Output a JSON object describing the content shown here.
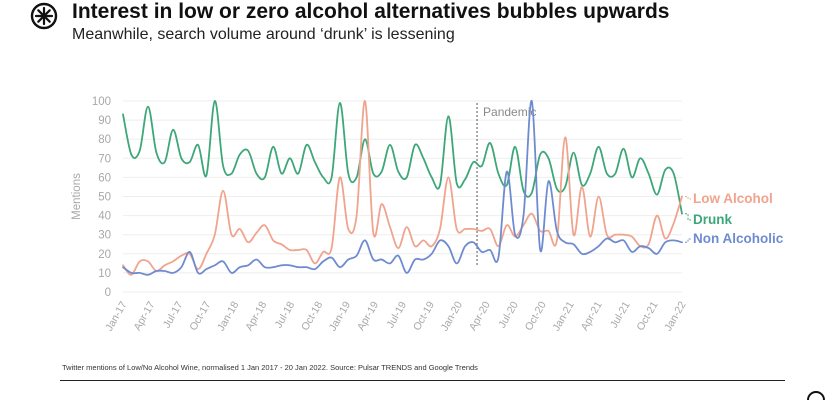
{
  "header": {
    "title": "Interest in low or zero alcohol alternatives bubbles upwards",
    "subtitle": "Meanwhile, search volume around ‘drunk’ is lessening"
  },
  "footnote": "Twitter mentions of Low/No Alcohol Wine, normalised 1 Jan 2017 - 20 Jan 2022. Source: Pulsar TRENDS and Google Trends",
  "colors": {
    "drunk": "#3ea779",
    "low_alcohol": "#f0a48d",
    "non_alcoholic": "#6f8bd0",
    "axis_text": "#a8a8a8",
    "grid": "#eeeeee"
  },
  "chart_data": {
    "type": "line",
    "title": "Interest in low or zero alcohol alternatives bubbles upwards",
    "xlabel": "",
    "ylabel": "Mentions",
    "ylim": [
      0,
      100
    ],
    "yticks": [
      "0",
      "10",
      "20",
      "30",
      "40",
      "50",
      "60",
      "70",
      "80",
      "90",
      "100"
    ],
    "x_start": "Jan 2017",
    "x_end": "Jan 2022",
    "xticks": [
      "Jan-17",
      "Apr-17",
      "Jul-17",
      "Oct-17",
      "Jan-18",
      "Apr-18",
      "Jul-18",
      "Oct-18",
      "Jan-19",
      "Apr-19",
      "Jul-19",
      "Oct-19",
      "Jan-20",
      "Apr-20",
      "Jul-20",
      "Oct-20",
      "Jan-21",
      "Apr-21",
      "Jul-21",
      "Oct-21",
      "Jan-22"
    ],
    "annotation": {
      "label": "Pandemic",
      "x": "Mar 2020"
    },
    "series": [
      {
        "name": "Drunk",
        "color": "#3ea779",
        "values": [
          93,
          72,
          74,
          97,
          73,
          68,
          85,
          70,
          68,
          77,
          61,
          100,
          66,
          62,
          72,
          74,
          62,
          60,
          76,
          62,
          70,
          62,
          77,
          68,
          60,
          60,
          99,
          62,
          60,
          80,
          62,
          63,
          77,
          63,
          60,
          77,
          70,
          60,
          56,
          92,
          57,
          59,
          68,
          66,
          78,
          62,
          56,
          76,
          53,
          52,
          72,
          70,
          54,
          55,
          73,
          56,
          62,
          76,
          62,
          62,
          75,
          60,
          70,
          62,
          51,
          64,
          62,
          41
        ]
      },
      {
        "name": "Low Alcohol",
        "color": "#f0a48d",
        "values": [
          14,
          9,
          16,
          16,
          11,
          14,
          16,
          19,
          20,
          12,
          20,
          30,
          53,
          30,
          33,
          26,
          31,
          35,
          27,
          25,
          22,
          22,
          22,
          15,
          21,
          23,
          60,
          33,
          40,
          100,
          31,
          46,
          34,
          23,
          34,
          24,
          27,
          24,
          33,
          60,
          33,
          33,
          33,
          32,
          33,
          24,
          35,
          29,
          35,
          41,
          32,
          32,
          27,
          81,
          30,
          55,
          29,
          50,
          30,
          30,
          30,
          29,
          24,
          25,
          40,
          28,
          36,
          50
        ]
      },
      {
        "name": "Non Alcoholic",
        "color": "#6f8bd0",
        "values": [
          13,
          10,
          10,
          9,
          11,
          11,
          10,
          13,
          21,
          10,
          12,
          14,
          16,
          10,
          13,
          14,
          17,
          13,
          13,
          14,
          14,
          13,
          13,
          12,
          16,
          18,
          13,
          17,
          19,
          27,
          17,
          17,
          15,
          19,
          10,
          17,
          17,
          20,
          27,
          24,
          15,
          24,
          26,
          21,
          22,
          18,
          63,
          30,
          40,
          100,
          22,
          58,
          32,
          26,
          25,
          20,
          21,
          24,
          28,
          26,
          27,
          21,
          24,
          23,
          20,
          26,
          27,
          26
        ]
      }
    ],
    "legend": [
      "Low Alcohol",
      "Drunk",
      "Non Alcoholic"
    ],
    "legend_placement": "right"
  }
}
